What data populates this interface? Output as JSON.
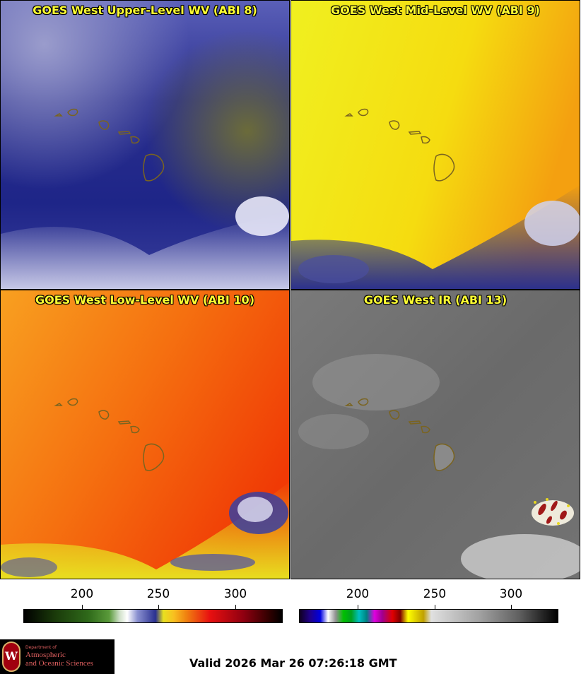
{
  "panels": [
    {
      "title": "GOES West Upper-Level WV (ABI 8)"
    },
    {
      "title": "GOES West Mid-Level WV (ABI 9)"
    },
    {
      "title": "GOES West Low-Level WV (ABI 10)"
    },
    {
      "title": "GOES West IR (ABI 13)"
    }
  ],
  "colorbars": {
    "left": {
      "ticks": [
        "200",
        "250",
        "300"
      ]
    },
    "right": {
      "ticks": [
        "200",
        "250",
        "300"
      ]
    }
  },
  "logo": {
    "line1": "Department of",
    "line2": "Atmospheric",
    "line3": "and Oceanic Sciences",
    "seal_letter": "W"
  },
  "valid_text": "Valid 2026 Mar 26 07:26:18 GMT",
  "colors": {
    "title_text": "#ffff33",
    "island_outline": "#7a6420"
  }
}
